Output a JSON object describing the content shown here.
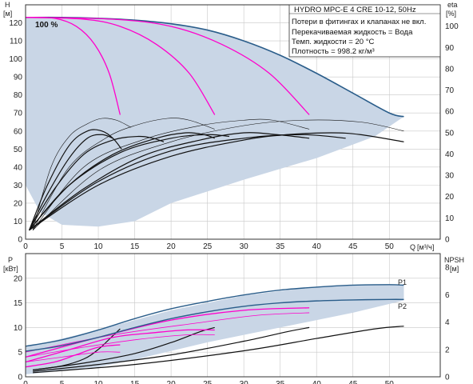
{
  "colors": {
    "envelope": "#c9d6e6",
    "grid": "#c8c8c8",
    "max_curve": "#2a5d8a",
    "speed_curve": "#ff00cc",
    "efficiency_curve": "#111111"
  },
  "info_box": {
    "title": "HYDRO MPC-E 4 CRE 10-12, 50Hz",
    "lines": [
      "Потери в фитингах и клапанах не вкл.",
      "Перекачиваемая жидкость = Вода",
      "Темп. жидкости = 20 °C",
      "Плотность = 998.2 кг/м³"
    ]
  },
  "chart_data": [
    {
      "type": "line",
      "name": "head",
      "ylabel": "H",
      "yunit": "[м]",
      "y2label": "eta",
      "y2unit": "[%]",
      "xlabel": "Q",
      "xunit": "[м³/ч]",
      "xlim": [
        0,
        57
      ],
      "ylim": [
        0,
        130
      ],
      "y2lim": [
        0,
        110
      ],
      "x_ticks": [
        0,
        5,
        10,
        15,
        20,
        25,
        30,
        35,
        40,
        45,
        50
      ],
      "y_ticks": [
        0,
        10,
        20,
        30,
        40,
        50,
        60,
        70,
        80,
        90,
        100,
        110,
        120
      ],
      "y2_ticks": [
        0,
        10,
        20,
        30,
        40,
        50,
        60,
        70,
        80,
        90,
        100
      ],
      "grid": true,
      "annotation": "100 %",
      "envelope": [
        [
          0,
          123
        ],
        [
          5,
          123
        ],
        [
          10,
          122.5
        ],
        [
          15,
          121.5
        ],
        [
          20,
          119.5
        ],
        [
          25,
          116
        ],
        [
          30,
          110
        ],
        [
          35,
          102
        ],
        [
          40,
          92
        ],
        [
          45,
          81
        ],
        [
          50,
          70
        ],
        [
          52,
          68
        ],
        [
          48,
          57
        ],
        [
          40,
          45
        ],
        [
          30,
          33
        ],
        [
          20,
          20
        ],
        [
          15,
          10
        ],
        [
          10,
          7
        ],
        [
          5,
          8
        ],
        [
          2,
          15
        ],
        [
          0,
          30
        ]
      ],
      "max_curve": [
        [
          0,
          123
        ],
        [
          5,
          123
        ],
        [
          10,
          122.5
        ],
        [
          15,
          121.5
        ],
        [
          20,
          119.5
        ],
        [
          25,
          116
        ],
        [
          30,
          110
        ],
        [
          35,
          102
        ],
        [
          40,
          92
        ],
        [
          45,
          81
        ],
        [
          50,
          70
        ],
        [
          52,
          68
        ]
      ],
      "pump_curves": [
        [
          [
            0,
            123
          ],
          [
            4,
            122.5
          ],
          [
            7,
            118
          ],
          [
            9.5,
            108
          ],
          [
            11.5,
            92
          ],
          [
            13,
            69
          ]
        ],
        [
          [
            0,
            123
          ],
          [
            8,
            122
          ],
          [
            13,
            118
          ],
          [
            18,
            108
          ],
          [
            22.5,
            92
          ],
          [
            26,
            69
          ]
        ],
        [
          [
            0,
            123
          ],
          [
            12,
            122
          ],
          [
            20,
            118
          ],
          [
            27,
            108
          ],
          [
            33.5,
            92
          ],
          [
            39,
            69
          ]
        ]
      ],
      "eta_curves": [
        [
          [
            0.5,
            5
          ],
          [
            3,
            30
          ],
          [
            6,
            52
          ],
          [
            8.5,
            60
          ],
          [
            10.5,
            60
          ],
          [
            12,
            56
          ],
          [
            13.2,
            50
          ]
        ],
        [
          [
            0.5,
            5
          ],
          [
            4,
            28
          ],
          [
            8,
            47
          ],
          [
            12,
            55
          ],
          [
            15.5,
            57
          ],
          [
            17.5,
            56
          ],
          [
            19,
            54
          ]
        ],
        [
          [
            0.5,
            5
          ],
          [
            6,
            30
          ],
          [
            12,
            47
          ],
          [
            18,
            56
          ],
          [
            22,
            59
          ],
          [
            24.5,
            58
          ],
          [
            26,
            56
          ]
        ],
        [
          [
            0.5,
            5
          ],
          [
            8,
            28
          ],
          [
            16,
            46
          ],
          [
            24,
            55
          ],
          [
            30,
            59
          ],
          [
            34.5,
            58
          ],
          [
            39,
            56
          ]
        ],
        [
          [
            0.5,
            5
          ],
          [
            10,
            30
          ],
          [
            20,
            46
          ],
          [
            30,
            55
          ],
          [
            36,
            58
          ],
          [
            42,
            59
          ],
          [
            46,
            58
          ],
          [
            52,
            54
          ]
        ],
        [
          [
            0.5,
            5
          ],
          [
            3,
            25
          ],
          [
            6,
            45
          ],
          [
            8.5,
            56
          ],
          [
            10.5,
            58
          ],
          [
            12,
            56
          ]
        ],
        [
          [
            0.5,
            5
          ],
          [
            6,
            30
          ],
          [
            13,
            48
          ],
          [
            20,
            56
          ],
          [
            25,
            58
          ],
          [
            28,
            57
          ]
        ],
        [
          [
            0.5,
            5
          ],
          [
            10,
            32
          ],
          [
            20,
            49
          ],
          [
            30,
            56
          ],
          [
            38,
            58
          ],
          [
            44,
            56
          ]
        ]
      ],
      "eta_thin_curves": [
        [
          [
            1,
            5
          ],
          [
            3.5,
            40
          ],
          [
            6,
            57
          ],
          [
            8.5,
            64
          ],
          [
            10.5,
            67
          ],
          [
            12.5,
            66
          ],
          [
            14.5,
            62
          ]
        ],
        [
          [
            1,
            5
          ],
          [
            6,
            40
          ],
          [
            11,
            56
          ],
          [
            15,
            63
          ],
          [
            19.5,
            67
          ],
          [
            22.5,
            66
          ],
          [
            26,
            61
          ]
        ],
        [
          [
            1,
            5
          ],
          [
            8,
            40
          ],
          [
            16,
            55
          ],
          [
            24,
            63
          ],
          [
            30,
            66
          ],
          [
            34,
            66
          ],
          [
            39,
            61
          ]
        ],
        [
          [
            1,
            5
          ],
          [
            10,
            38
          ],
          [
            20,
            54
          ],
          [
            30,
            63
          ],
          [
            38,
            66
          ],
          [
            46,
            65
          ],
          [
            52,
            60
          ]
        ]
      ]
    },
    {
      "type": "line",
      "name": "power_npsh",
      "ylabel": "P",
      "yunit": "[кВт]",
      "y2label": "NPSH",
      "y2unit": "[м]",
      "xlim": [
        0,
        57
      ],
      "ylim": [
        0,
        25
      ],
      "y2lim": [
        0,
        9
      ],
      "x_ticks": [
        0,
        5,
        10,
        15,
        20,
        25,
        30,
        35,
        40,
        45,
        50
      ],
      "y_ticks": [
        0,
        5,
        10,
        15,
        20
      ],
      "y2_ticks": [
        0,
        2,
        4,
        6,
        8
      ],
      "grid": true,
      "series_labels": [
        "P1",
        "P2"
      ],
      "envelope": [
        [
          0,
          6
        ],
        [
          10,
          9.5
        ],
        [
          20,
          13.5
        ],
        [
          30,
          16.5
        ],
        [
          40,
          18.3
        ],
        [
          48,
          18.7
        ],
        [
          52,
          18.5
        ],
        [
          52,
          15.5
        ],
        [
          45,
          13
        ],
        [
          35,
          10
        ],
        [
          25,
          7
        ],
        [
          15,
          3.5
        ],
        [
          10,
          2
        ],
        [
          5,
          1.2
        ],
        [
          0,
          0.5
        ]
      ],
      "p1_curve": [
        [
          0,
          6.2
        ],
        [
          5,
          7.5
        ],
        [
          10,
          9.5
        ],
        [
          15,
          11.8
        ],
        [
          20,
          13.8
        ],
        [
          25,
          15.3
        ],
        [
          30,
          16.6
        ],
        [
          35,
          17.6
        ],
        [
          40,
          18.2
        ],
        [
          45,
          18.6
        ],
        [
          50,
          18.7
        ],
        [
          52,
          18.6
        ]
      ],
      "p2_curve": [
        [
          0,
          5.2
        ],
        [
          5,
          6.3
        ],
        [
          10,
          8
        ],
        [
          15,
          10
        ],
        [
          20,
          11.8
        ],
        [
          25,
          13.2
        ],
        [
          30,
          14.3
        ],
        [
          35,
          15
        ],
        [
          40,
          15.4
        ],
        [
          45,
          15.6
        ],
        [
          50,
          15.7
        ],
        [
          52,
          15.7
        ]
      ],
      "power_curves": [
        [
          [
            0,
            2
          ],
          [
            4,
            3
          ],
          [
            7,
            4.5
          ],
          [
            10,
            6
          ],
          [
            13,
            6.5
          ]
        ],
        [
          [
            0,
            3
          ],
          [
            6,
            5.5
          ],
          [
            12,
            8
          ],
          [
            18,
            9
          ],
          [
            22,
            9.5
          ],
          [
            26,
            9.5
          ]
        ],
        [
          [
            0,
            4
          ],
          [
            10,
            8
          ],
          [
            20,
            11.5
          ],
          [
            30,
            13.5
          ],
          [
            39,
            14
          ]
        ]
      ],
      "power_thin_curves": [
        [
          [
            0,
            3
          ],
          [
            5,
            4
          ],
          [
            10,
            5
          ],
          [
            13,
            5
          ]
        ],
        [
          [
            0,
            4
          ],
          [
            8,
            6
          ],
          [
            15,
            7.5
          ],
          [
            22,
            8.5
          ],
          [
            26,
            8.5
          ]
        ],
        [
          [
            0,
            5
          ],
          [
            12,
            8.5
          ],
          [
            24,
            11
          ],
          [
            32,
            12.5
          ],
          [
            39,
            13
          ]
        ]
      ],
      "npsh_curves": [
        [
          [
            1,
            0.5
          ],
          [
            5,
            0.8
          ],
          [
            8,
            1.3
          ],
          [
            10,
            2
          ],
          [
            12,
            3
          ],
          [
            13,
            3.5
          ]
        ],
        [
          [
            1,
            0.5
          ],
          [
            8,
            1
          ],
          [
            15,
            1.7
          ],
          [
            20,
            2.5
          ],
          [
            24,
            3.3
          ],
          [
            26,
            3.6
          ]
        ],
        [
          [
            1,
            0.4
          ],
          [
            10,
            0.9
          ],
          [
            20,
            1.6
          ],
          [
            30,
            2.6
          ],
          [
            36,
            3.3
          ],
          [
            39,
            3.6
          ]
        ],
        [
          [
            1,
            0.3
          ],
          [
            15,
            0.9
          ],
          [
            30,
            1.9
          ],
          [
            40,
            2.8
          ],
          [
            48,
            3.5
          ],
          [
            52,
            3.7
          ]
        ]
      ]
    }
  ]
}
